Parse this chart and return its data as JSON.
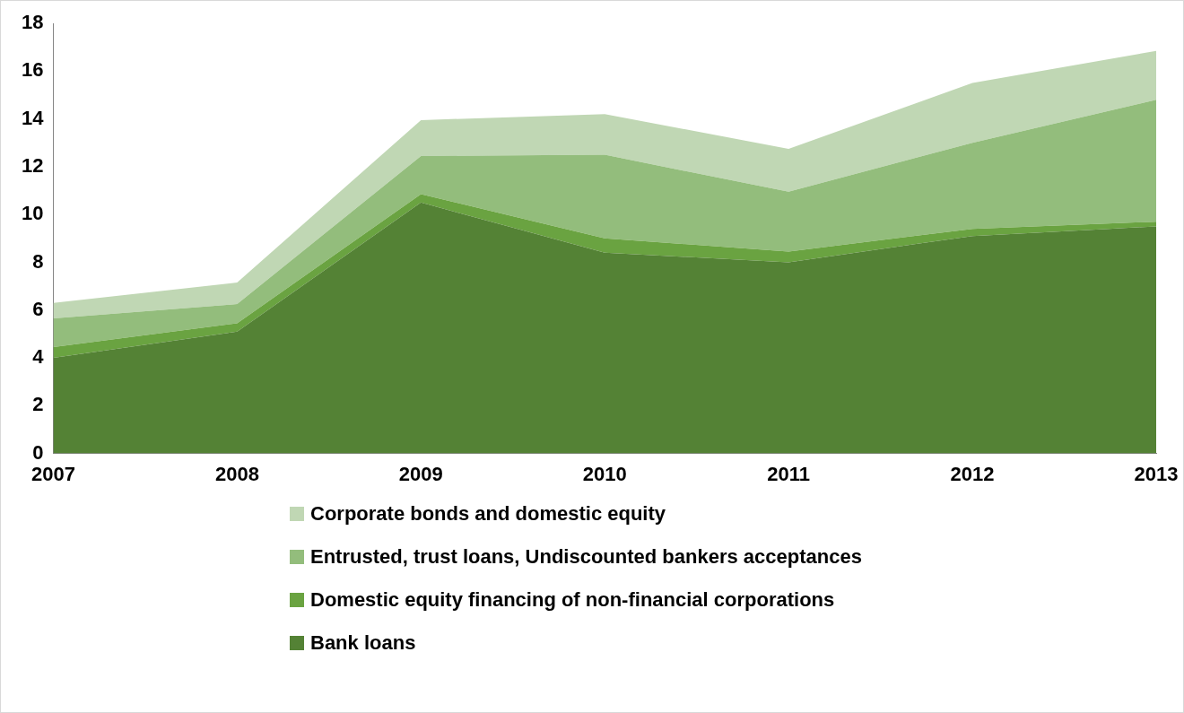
{
  "chart_data": {
    "type": "area",
    "stacked": true,
    "categories": [
      "2007",
      "2008",
      "2009",
      "2010",
      "2011",
      "2012",
      "2013"
    ],
    "series": [
      {
        "name": "Bank loans",
        "color": "#548235",
        "values": [
          4.0,
          5.1,
          10.5,
          8.4,
          8.0,
          9.1,
          9.5
        ]
      },
      {
        "name": "Domestic equity financing of non-financial corporations",
        "color": "#6aa341",
        "values": [
          0.45,
          0.35,
          0.35,
          0.6,
          0.45,
          0.3,
          0.2
        ]
      },
      {
        "name": "Entrusted, trust loans, Undiscounted bankers acceptances",
        "color": "#93bd7c",
        "values": [
          1.2,
          0.8,
          1.6,
          3.5,
          2.5,
          3.6,
          5.1
        ]
      },
      {
        "name": "Corporate bonds and domestic equity",
        "color": "#c0d7b4",
        "values": [
          0.65,
          0.9,
          1.5,
          1.7,
          1.8,
          2.5,
          2.05
        ]
      }
    ],
    "ylim": [
      0,
      18
    ],
    "yticks": [
      0,
      2,
      4,
      6,
      8,
      10,
      12,
      14,
      16,
      18
    ],
    "grid": false,
    "legend": "bottom"
  }
}
